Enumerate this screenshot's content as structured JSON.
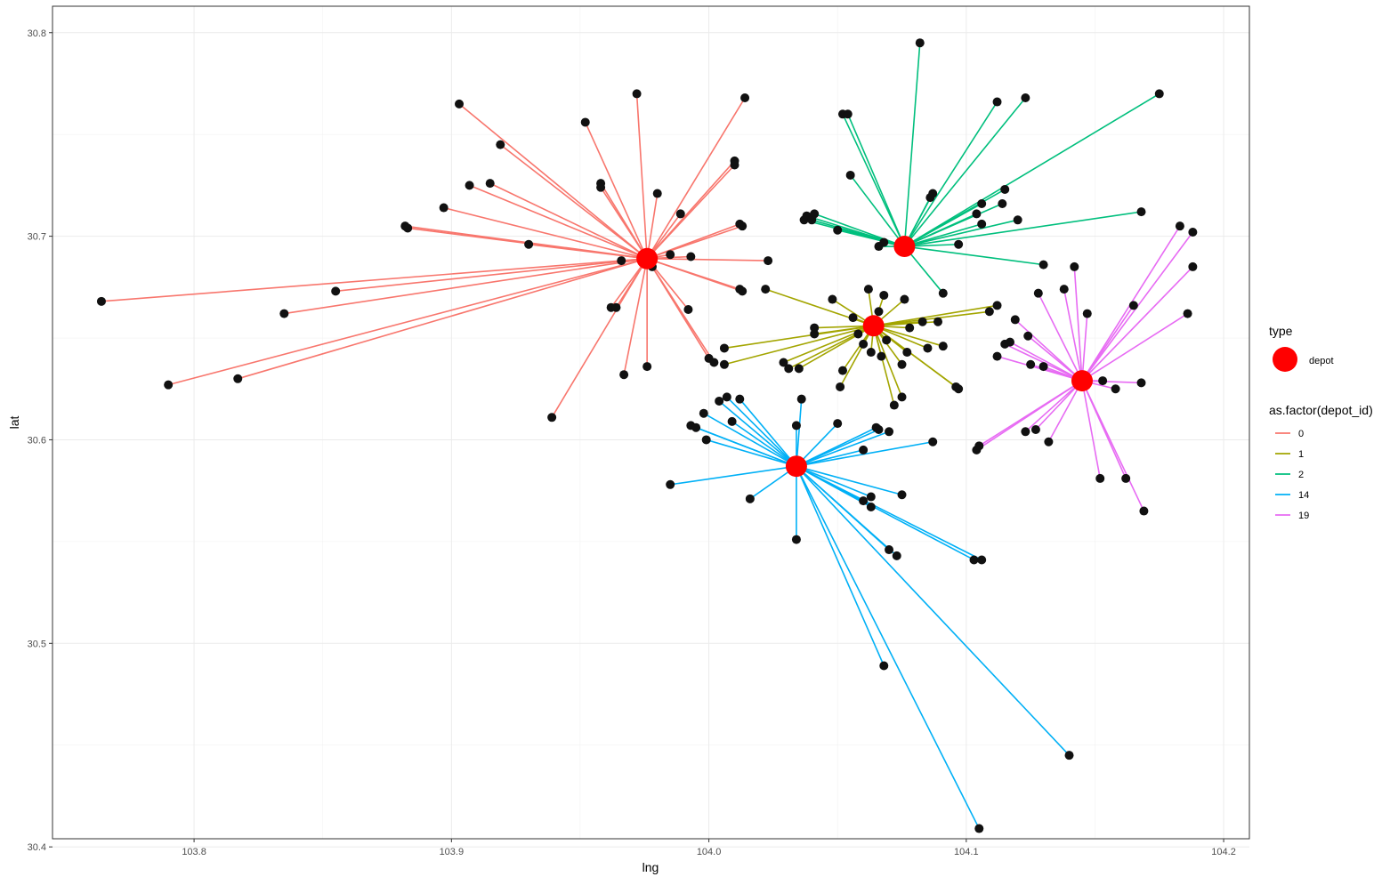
{
  "chart_data": {
    "type": "scatter",
    "title": "",
    "xlabel": "lng",
    "ylabel": "lat",
    "xlim": [
      103.745,
      104.21
    ],
    "ylim": [
      30.404,
      30.813
    ],
    "x_ticks": [
      103.8,
      103.9,
      104.0,
      104.1,
      104.2
    ],
    "x_tick_labels": [
      "103.8",
      "103.9",
      "104.0",
      "104.1",
      "104.2"
    ],
    "y_ticks": [
      30.4,
      30.5,
      30.6,
      30.7,
      30.8
    ],
    "y_tick_labels": [
      "30.4",
      "30.5",
      "30.6",
      "30.7",
      "30.8"
    ],
    "grid": true,
    "legend_position": "right",
    "legend_type": {
      "title": "type",
      "entries": [
        {
          "label": "depot",
          "color": "#ff0000"
        }
      ]
    },
    "legend_color": {
      "title": "as.factor(depot_id)",
      "entries": [
        {
          "label": "0",
          "color": "#f8766d"
        },
        {
          "label": "1",
          "color": "#a3a500"
        },
        {
          "label": "2",
          "color": "#00bf7d"
        },
        {
          "label": "14",
          "color": "#00b0f6"
        },
        {
          "label": "19",
          "color": "#e76bf3"
        }
      ]
    },
    "point_color": "#111111",
    "depot_color": "#ff0000",
    "series": [
      {
        "name": "0",
        "color": "#f8766d",
        "depot": [
          103.976,
          30.689
        ],
        "customers": [
          [
            103.764,
            30.668
          ],
          [
            103.79,
            30.627
          ],
          [
            103.817,
            30.63
          ],
          [
            103.835,
            30.662
          ],
          [
            103.855,
            30.673
          ],
          [
            103.882,
            30.705
          ],
          [
            103.883,
            30.704
          ],
          [
            103.897,
            30.714
          ],
          [
            103.903,
            30.765
          ],
          [
            103.907,
            30.725
          ],
          [
            103.915,
            30.726
          ],
          [
            103.919,
            30.745
          ],
          [
            103.93,
            30.696
          ],
          [
            103.939,
            30.611
          ],
          [
            103.952,
            30.756
          ],
          [
            103.958,
            30.726
          ],
          [
            103.958,
            30.724
          ],
          [
            103.962,
            30.665
          ],
          [
            103.964,
            30.665
          ],
          [
            103.966,
            30.688
          ],
          [
            103.967,
            30.632
          ],
          [
            103.972,
            30.77
          ],
          [
            103.976,
            30.636
          ],
          [
            103.978,
            30.685
          ],
          [
            103.98,
            30.721
          ],
          [
            103.985,
            30.691
          ],
          [
            103.989,
            30.711
          ],
          [
            103.992,
            30.664
          ],
          [
            103.993,
            30.69
          ],
          [
            104.0,
            30.64
          ],
          [
            104.002,
            30.638
          ],
          [
            104.01,
            30.737
          ],
          [
            104.01,
            30.735
          ],
          [
            104.012,
            30.706
          ],
          [
            104.013,
            30.705
          ],
          [
            104.012,
            30.674
          ],
          [
            104.013,
            30.673
          ],
          [
            104.014,
            30.768
          ],
          [
            104.023,
            30.688
          ]
        ]
      },
      {
        "name": "1",
        "color": "#a3a500",
        "depot": [
          104.064,
          30.656
        ],
        "customers": [
          [
            104.006,
            30.645
          ],
          [
            104.006,
            30.637
          ],
          [
            104.022,
            30.674
          ],
          [
            104.029,
            30.638
          ],
          [
            104.031,
            30.635
          ],
          [
            104.035,
            30.635
          ],
          [
            104.041,
            30.655
          ],
          [
            104.041,
            30.652
          ],
          [
            104.048,
            30.669
          ],
          [
            104.051,
            30.626
          ],
          [
            104.052,
            30.634
          ],
          [
            104.056,
            30.66
          ],
          [
            104.058,
            30.652
          ],
          [
            104.06,
            30.647
          ],
          [
            104.062,
            30.674
          ],
          [
            104.063,
            30.643
          ],
          [
            104.066,
            30.663
          ],
          [
            104.067,
            30.641
          ],
          [
            104.068,
            30.671
          ],
          [
            104.069,
            30.649
          ],
          [
            104.072,
            30.617
          ],
          [
            104.075,
            30.621
          ],
          [
            104.075,
            30.637
          ],
          [
            104.076,
            30.669
          ],
          [
            104.077,
            30.643
          ],
          [
            104.078,
            30.655
          ],
          [
            104.083,
            30.658
          ],
          [
            104.085,
            30.645
          ],
          [
            104.089,
            30.658
          ],
          [
            104.091,
            30.646
          ],
          [
            104.096,
            30.626
          ],
          [
            104.097,
            30.625
          ],
          [
            104.109,
            30.663
          ],
          [
            104.112,
            30.666
          ]
        ]
      },
      {
        "name": "2",
        "color": "#00bf7d",
        "depot": [
          104.076,
          30.695
        ],
        "customers": [
          [
            104.037,
            30.708
          ],
          [
            104.038,
            30.71
          ],
          [
            104.04,
            30.708
          ],
          [
            104.041,
            30.711
          ],
          [
            104.05,
            30.703
          ],
          [
            104.052,
            30.76
          ],
          [
            104.054,
            30.76
          ],
          [
            104.055,
            30.73
          ],
          [
            104.066,
            30.695
          ],
          [
            104.068,
            30.697
          ],
          [
            104.082,
            30.795
          ],
          [
            104.086,
            30.719
          ],
          [
            104.087,
            30.721
          ],
          [
            104.091,
            30.672
          ],
          [
            104.097,
            30.696
          ],
          [
            104.104,
            30.711
          ],
          [
            104.106,
            30.716
          ],
          [
            104.106,
            30.706
          ],
          [
            104.112,
            30.766
          ],
          [
            104.114,
            30.716
          ],
          [
            104.115,
            30.723
          ],
          [
            104.12,
            30.708
          ],
          [
            104.123,
            30.768
          ],
          [
            104.13,
            30.686
          ],
          [
            104.168,
            30.712
          ],
          [
            104.175,
            30.77
          ]
        ]
      },
      {
        "name": "14",
        "color": "#00b0f6",
        "depot": [
          104.034,
          30.587
        ],
        "customers": [
          [
            103.985,
            30.578
          ],
          [
            103.993,
            30.607
          ],
          [
            103.995,
            30.606
          ],
          [
            103.998,
            30.613
          ],
          [
            103.999,
            30.6
          ],
          [
            104.004,
            30.619
          ],
          [
            104.007,
            30.621
          ],
          [
            104.009,
            30.609
          ],
          [
            104.012,
            30.62
          ],
          [
            104.016,
            30.571
          ],
          [
            104.034,
            30.607
          ],
          [
            104.036,
            30.62
          ],
          [
            104.034,
            30.551
          ],
          [
            104.05,
            30.608
          ],
          [
            104.06,
            30.57
          ],
          [
            104.06,
            30.595
          ],
          [
            104.063,
            30.572
          ],
          [
            104.063,
            30.567
          ],
          [
            104.065,
            30.606
          ],
          [
            104.066,
            30.605
          ],
          [
            104.07,
            30.604
          ],
          [
            104.07,
            30.546
          ],
          [
            104.073,
            30.543
          ],
          [
            104.075,
            30.573
          ],
          [
            104.068,
            30.489
          ],
          [
            104.087,
            30.599
          ],
          [
            104.103,
            30.541
          ],
          [
            104.106,
            30.541
          ],
          [
            104.105,
            30.409
          ],
          [
            104.14,
            30.445
          ]
        ]
      },
      {
        "name": "19",
        "color": "#e76bf3",
        "depot": [
          104.145,
          30.629
        ],
        "customers": [
          [
            104.104,
            30.595
          ],
          [
            104.105,
            30.597
          ],
          [
            104.112,
            30.641
          ],
          [
            104.115,
            30.647
          ],
          [
            104.117,
            30.648
          ],
          [
            104.119,
            30.659
          ],
          [
            104.123,
            30.604
          ],
          [
            104.124,
            30.651
          ],
          [
            104.125,
            30.637
          ],
          [
            104.127,
            30.605
          ],
          [
            104.128,
            30.672
          ],
          [
            104.13,
            30.636
          ],
          [
            104.132,
            30.599
          ],
          [
            104.138,
            30.674
          ],
          [
            104.142,
            30.685
          ],
          [
            104.147,
            30.662
          ],
          [
            104.152,
            30.581
          ],
          [
            104.153,
            30.629
          ],
          [
            104.158,
            30.625
          ],
          [
            104.162,
            30.581
          ],
          [
            104.165,
            30.666
          ],
          [
            104.168,
            30.628
          ],
          [
            104.169,
            30.565
          ],
          [
            104.183,
            30.705
          ],
          [
            104.186,
            30.662
          ],
          [
            104.188,
            30.685
          ],
          [
            104.188,
            30.702
          ]
        ]
      }
    ]
  }
}
